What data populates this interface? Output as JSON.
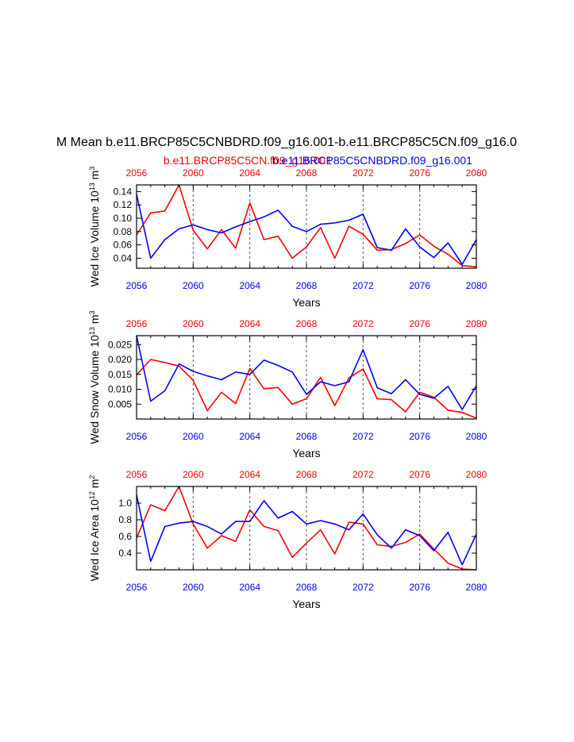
{
  "title": "M Mean b.e11.BRCP85C5CNBDRD.f09_g16.001-b.e11.BRCP85C5CN.f09_g16.0",
  "colors": {
    "red": "#ff0000",
    "blue": "#0000ff",
    "black": "#000000",
    "grid": "#555555"
  },
  "chart_data": [
    {
      "type": "line",
      "ylabel_main": "Wed Ice Volume 10",
      "ylabel_exp": "13",
      "ylabel_unit": " m",
      "ylabel_unit_exp": "3",
      "xlabel": "Years",
      "x_range": [
        2056,
        2080
      ],
      "xticks": [
        2056,
        2060,
        2064,
        2068,
        2072,
        2076,
        2080
      ],
      "ylim": [
        0.025,
        0.15
      ],
      "yticks": [
        0.04,
        0.06,
        0.08,
        0.1,
        0.12,
        0.14
      ],
      "ytick_labels": [
        "0.04",
        "0.06",
        "0.08",
        "0.10",
        "0.12",
        "0.14"
      ],
      "grid_vertical": true,
      "top_legend": [
        {
          "name": "b.e11.BRCP85C5CN.f09_g16.001",
          "color": "#ff0000"
        },
        {
          "name": "b.e11.BRCP85C5CNBDRD.f09_g16.001",
          "color": "#0000ff"
        }
      ],
      "x": [
        2056,
        2057,
        2058,
        2059,
        2060,
        2061,
        2062,
        2063,
        2064,
        2065,
        2066,
        2067,
        2068,
        2069,
        2070,
        2071,
        2072,
        2073,
        2074,
        2075,
        2076,
        2077,
        2078,
        2079,
        2080
      ],
      "series": [
        {
          "name": "b.e11.BRCP85C5CN.f09_g16.001",
          "color": "#ff0000",
          "values": [
            0.075,
            0.108,
            0.111,
            0.15,
            0.082,
            0.054,
            0.083,
            0.055,
            0.123,
            0.068,
            0.073,
            0.04,
            0.057,
            0.086,
            0.04,
            0.088,
            0.076,
            0.052,
            0.053,
            0.062,
            0.075,
            0.058,
            0.046,
            0.029,
            0.027
          ]
        },
        {
          "name": "b.e11.BRCP85C5CNBDRD.f09_g16.001",
          "color": "#0000ff",
          "values": [
            0.136,
            0.04,
            0.068,
            0.084,
            0.09,
            0.083,
            0.078,
            0.087,
            0.095,
            0.102,
            0.112,
            0.088,
            0.08,
            0.091,
            0.093,
            0.097,
            0.106,
            0.056,
            0.052,
            0.084,
            0.057,
            0.041,
            0.063,
            0.031,
            0.068
          ]
        }
      ]
    },
    {
      "type": "line",
      "ylabel_main": "Wed Snow Volume 10",
      "ylabel_exp": "13",
      "ylabel_unit": " m",
      "ylabel_unit_exp": "3",
      "xlabel": "Years",
      "x_range": [
        2056,
        2080
      ],
      "xticks": [
        2056,
        2060,
        2064,
        2068,
        2072,
        2076,
        2080
      ],
      "ylim": [
        0.0,
        0.028
      ],
      "yticks": [
        0.005,
        0.01,
        0.015,
        0.02,
        0.025
      ],
      "ytick_labels": [
        "0.005",
        "0.010",
        "0.015",
        "0.020",
        "0.025"
      ],
      "grid_vertical": true,
      "x": [
        2056,
        2057,
        2058,
        2059,
        2060,
        2061,
        2062,
        2063,
        2064,
        2065,
        2066,
        2067,
        2068,
        2069,
        2070,
        2071,
        2072,
        2073,
        2074,
        2075,
        2076,
        2077,
        2078,
        2079,
        2080
      ],
      "series": [
        {
          "name": "b.e11.BRCP85C5CN.f09_g16.001",
          "color": "#ff0000",
          "values": [
            0.0148,
            0.02,
            0.019,
            0.0178,
            0.013,
            0.0028,
            0.009,
            0.0052,
            0.017,
            0.0102,
            0.0106,
            0.005,
            0.0068,
            0.014,
            0.0045,
            0.0138,
            0.0168,
            0.0068,
            0.0065,
            0.0024,
            0.009,
            0.0073,
            0.003,
            0.0022,
            0.0003
          ]
        },
        {
          "name": "b.e11.BRCP85C5CNBDRD.f09_g16.001",
          "color": "#0000ff",
          "values": [
            0.028,
            0.006,
            0.0095,
            0.0185,
            0.016,
            0.0145,
            0.0132,
            0.0158,
            0.015,
            0.0198,
            0.018,
            0.0158,
            0.0083,
            0.0125,
            0.0112,
            0.0125,
            0.0233,
            0.0105,
            0.0085,
            0.0132,
            0.0083,
            0.007,
            0.011,
            0.0032,
            0.0112
          ]
        }
      ]
    },
    {
      "type": "line",
      "ylabel_main": "Wed Ice Area 10",
      "ylabel_exp": "12",
      "ylabel_unit": " m",
      "ylabel_unit_exp": "2",
      "xlabel": "Years",
      "x_range": [
        2056,
        2080
      ],
      "xticks": [
        2056,
        2060,
        2064,
        2068,
        2072,
        2076,
        2080
      ],
      "ylim": [
        0.2,
        1.2
      ],
      "yticks": [
        0.4,
        0.6,
        0.8,
        1.0
      ],
      "ytick_labels": [
        "0.4",
        "0.6",
        "0.8",
        "1.0"
      ],
      "grid_vertical": true,
      "x": [
        2056,
        2057,
        2058,
        2059,
        2060,
        2061,
        2062,
        2063,
        2064,
        2065,
        2066,
        2067,
        2068,
        2069,
        2070,
        2071,
        2072,
        2073,
        2074,
        2075,
        2076,
        2077,
        2078,
        2079,
        2080
      ],
      "series": [
        {
          "name": "b.e11.BRCP85C5CN.f09_g16.001",
          "color": "#ff0000",
          "values": [
            0.58,
            0.98,
            0.91,
            1.2,
            0.75,
            0.46,
            0.61,
            0.54,
            0.92,
            0.72,
            0.67,
            0.35,
            0.52,
            0.68,
            0.39,
            0.77,
            0.75,
            0.5,
            0.48,
            0.53,
            0.63,
            0.45,
            0.28,
            0.21,
            0.2
          ]
        },
        {
          "name": "b.e11.BRCP85C5CNBDRD.f09_g16.001",
          "color": "#0000ff",
          "values": [
            1.1,
            0.3,
            0.72,
            0.76,
            0.78,
            0.72,
            0.63,
            0.78,
            0.78,
            1.03,
            0.82,
            0.9,
            0.75,
            0.79,
            0.75,
            0.68,
            0.87,
            0.62,
            0.46,
            0.68,
            0.61,
            0.43,
            0.65,
            0.26,
            0.63
          ]
        }
      ]
    }
  ]
}
